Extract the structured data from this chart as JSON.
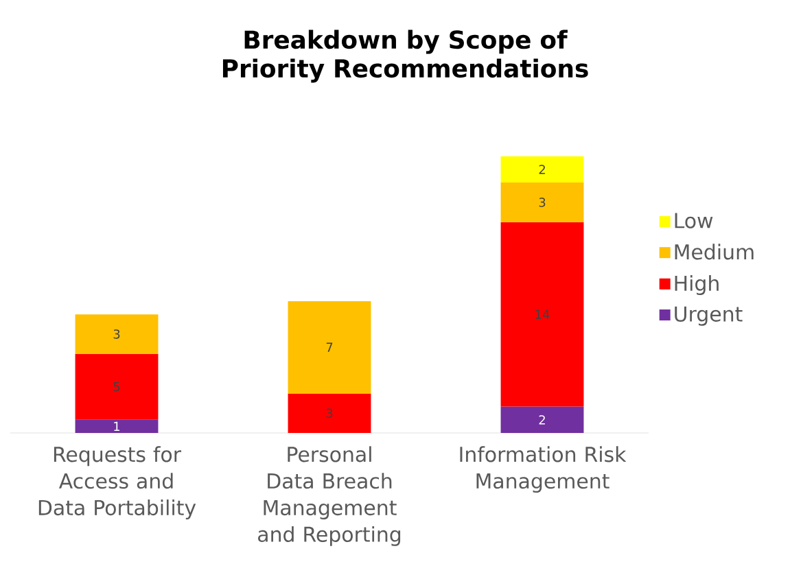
{
  "chart_data": {
    "type": "bar",
    "title": "Breakdown by Scope of Priority Recommendations",
    "stacked": true,
    "data_labels": true,
    "legend": "right",
    "tick_labels": "x",
    "categories": [
      "Requests for Access and Data Portability",
      "Personal Data Breach Management and Reporting",
      "Information Risk Management"
    ],
    "series": [
      {
        "name": "Urgent",
        "color": "#7030a0",
        "values": [
          1,
          null,
          2
        ]
      },
      {
        "name": "High",
        "color": "#ff0000",
        "values": [
          5,
          3,
          14
        ]
      },
      {
        "name": "Medium",
        "color": "#ffc000",
        "values": [
          3,
          7,
          3
        ]
      },
      {
        "name": "Low",
        "color": "#ffff00",
        "values": [
          null,
          null,
          2
        ]
      }
    ]
  }
}
